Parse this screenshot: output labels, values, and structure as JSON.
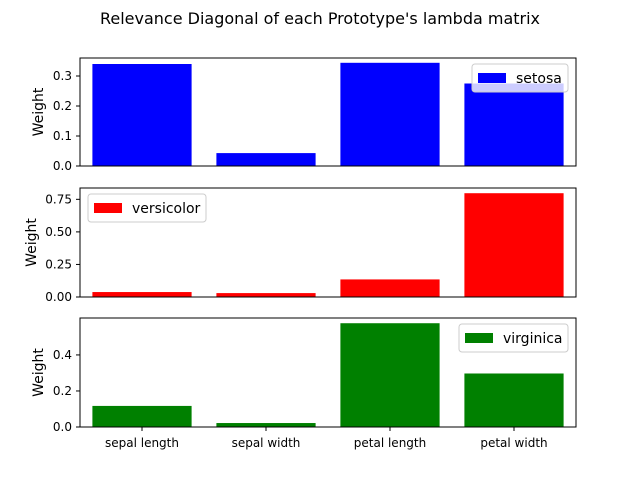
{
  "chart_data": {
    "type": "bar",
    "title": "Relevance Diagonal of each Prototype's lambda matrix",
    "categories": [
      "sepal length",
      "sepal width",
      "petal length",
      "petal width"
    ],
    "ylabel": "Weight",
    "grid": false,
    "subplots": [
      {
        "name": "setosa",
        "color": "#0000ff",
        "values": [
          0.34,
          0.043,
          0.344,
          0.275
        ],
        "ylim": [
          0,
          0.36
        ],
        "yticks": [
          0.0,
          0.1,
          0.2,
          0.3
        ],
        "ytick_labels": [
          "0.0",
          "0.1",
          "0.2",
          "0.3"
        ],
        "legend_position": "upper right"
      },
      {
        "name": "versicolor",
        "color": "#ff0000",
        "values": [
          0.038,
          0.03,
          0.135,
          0.797
        ],
        "ylim": [
          0,
          0.837
        ],
        "yticks": [
          0.0,
          0.25,
          0.5,
          0.75
        ],
        "ytick_labels": [
          "0.00",
          "0.25",
          "0.50",
          "0.75"
        ],
        "legend_position": "upper left"
      },
      {
        "name": "virginica",
        "color": "#008000",
        "values": [
          0.117,
          0.022,
          0.576,
          0.297
        ],
        "ylim": [
          0,
          0.605
        ],
        "yticks": [
          0.0,
          0.2,
          0.4
        ],
        "ytick_labels": [
          "0.0",
          "0.2",
          "0.4"
        ],
        "legend_position": "upper right"
      }
    ]
  }
}
